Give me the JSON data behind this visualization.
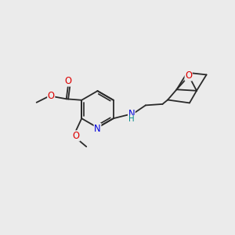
{
  "bg_color": "#ebebeb",
  "bond_color": "#2a2a2a",
  "figsize": [
    3.0,
    3.0
  ],
  "dpi": 100,
  "atom_colors": {
    "N_ring": "#0000dd",
    "N_amine": "#0000dd",
    "O": "#dd0000",
    "H": "#008888"
  },
  "font_size": 7.8,
  "lw": 1.3
}
